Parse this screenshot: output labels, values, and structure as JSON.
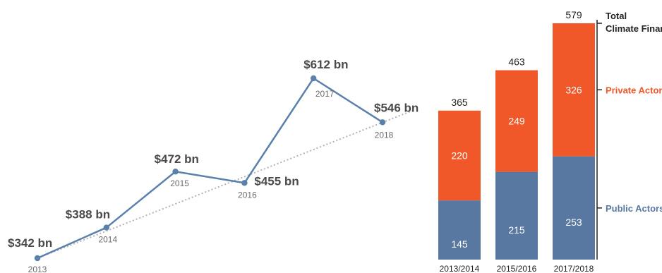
{
  "colors": {
    "line": "#5a80ab",
    "trend": "#b3b3b3",
    "public": "#5878a1",
    "private": "#f0582a",
    "axis": "#222222"
  },
  "chart_data": [
    {
      "type": "line",
      "x": [
        "2013",
        "2014",
        "2015",
        "2016",
        "2017",
        "2018"
      ],
      "values": [
        342,
        388,
        472,
        455,
        612,
        546
      ],
      "labels": [
        "$342 bn",
        "$388 bn",
        "$472 bn",
        "$455 bn",
        "$612 bn",
        "$546 bn"
      ],
      "ylim": [
        342,
        612
      ],
      "trendline": true,
      "grid": false
    },
    {
      "type": "bar",
      "stacked": true,
      "categories": [
        "2013/2014",
        "2015/2016",
        "2017/2018"
      ],
      "series": [
        {
          "name": "Public Actors",
          "values": [
            145,
            215,
            253
          ]
        },
        {
          "name": "Private Actors",
          "values": [
            220,
            249,
            326
          ]
        }
      ],
      "totals": [
        365,
        463,
        579
      ],
      "totals_name": "Total\nClimate Finance",
      "totals_name_lines": [
        "Total",
        "Climate Finance"
      ],
      "ylim": [
        0,
        579
      ],
      "legend": "right"
    }
  ]
}
